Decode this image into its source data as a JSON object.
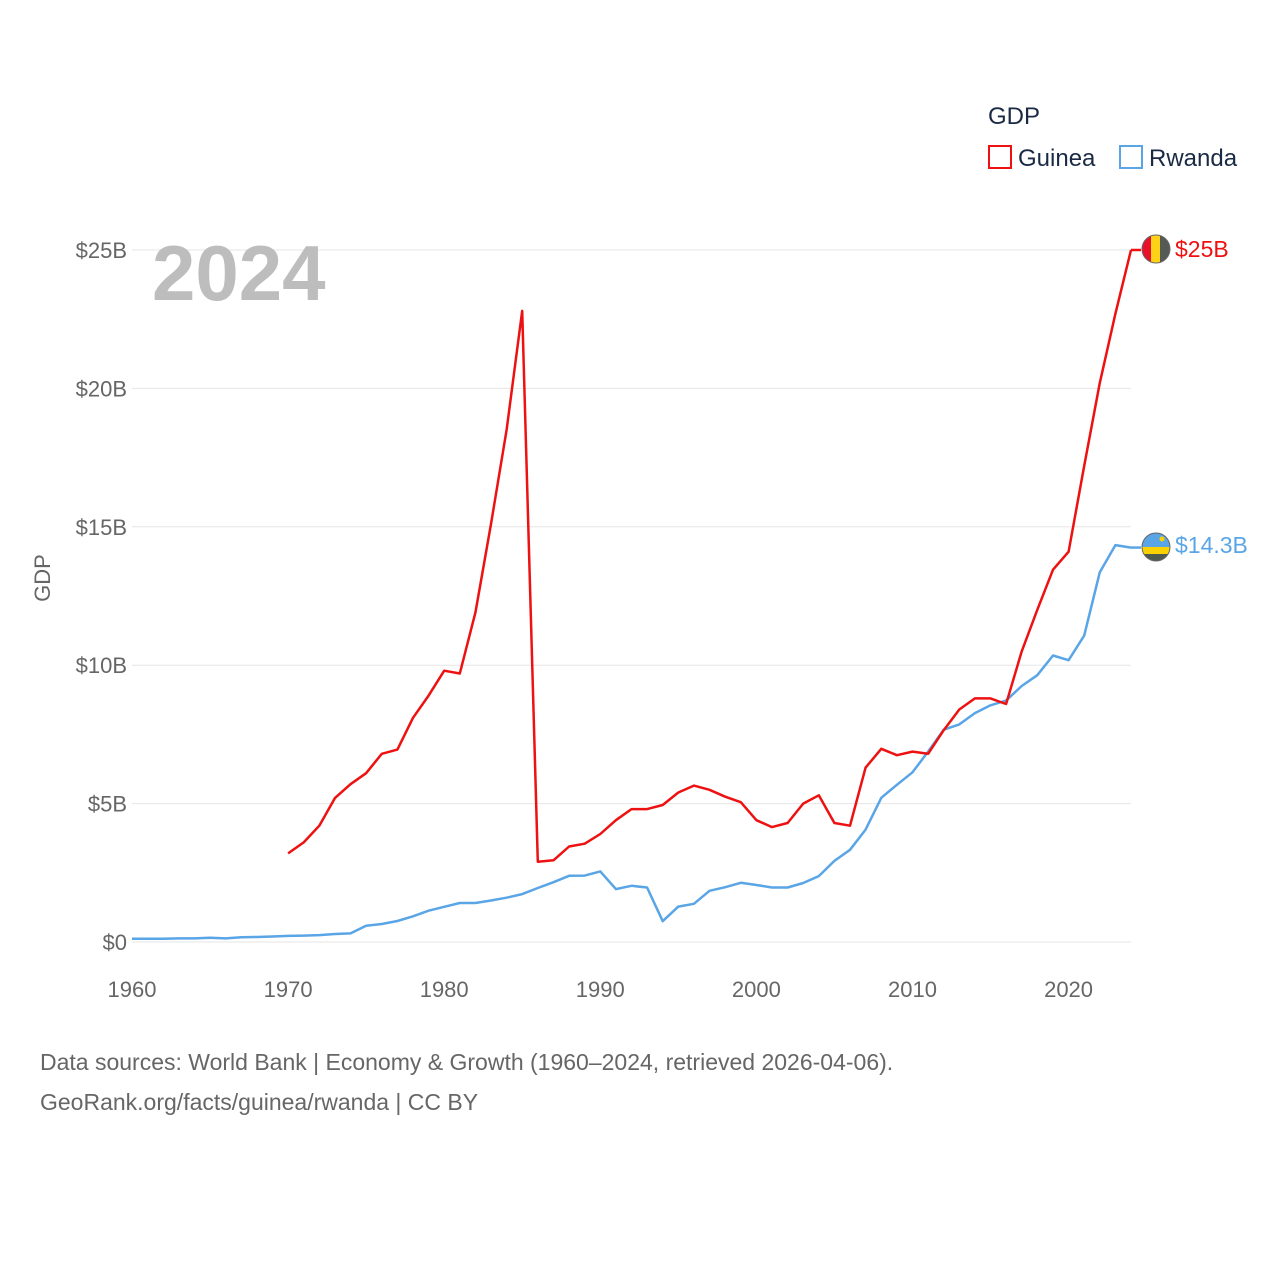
{
  "chart_data": {
    "type": "line",
    "year_label": "2024",
    "ylabel": "GDP",
    "xlim": [
      1960,
      2024
    ],
    "ylim": [
      0,
      25
    ],
    "y_ticks": [
      {
        "value": 0,
        "label": "$0"
      },
      {
        "value": 5,
        "label": "$5B"
      },
      {
        "value": 10,
        "label": "$10B"
      },
      {
        "value": 15,
        "label": "$15B"
      },
      {
        "value": 20,
        "label": "$20B"
      },
      {
        "value": 25,
        "label": "$25B"
      }
    ],
    "x_ticks": [
      {
        "value": 1960,
        "label": "1960"
      },
      {
        "value": 1970,
        "label": "1970"
      },
      {
        "value": 1980,
        "label": "1980"
      },
      {
        "value": 1990,
        "label": "1990"
      },
      {
        "value": 2000,
        "label": "2000"
      },
      {
        "value": 2010,
        "label": "2010"
      },
      {
        "value": 2020,
        "label": "2020"
      }
    ],
    "legend": {
      "title": "GDP",
      "position": "top-right"
    },
    "series": [
      {
        "name": "Guinea",
        "color": "#ee1111",
        "end_label": "$25B",
        "flag": "guinea-flag",
        "x": [
          1970,
          1971,
          1972,
          1973,
          1974,
          1975,
          1976,
          1977,
          1978,
          1979,
          1980,
          1981,
          1982,
          1983,
          1984,
          1985,
          1986,
          1987,
          1988,
          1989,
          1990,
          1991,
          1992,
          1993,
          1994,
          1995,
          1996,
          1997,
          1998,
          1999,
          2000,
          2001,
          2002,
          2003,
          2004,
          2005,
          2006,
          2007,
          2008,
          2009,
          2010,
          2011,
          2012,
          2013,
          2014,
          2015,
          2016,
          2017,
          2018,
          2019,
          2020,
          2021,
          2022,
          2023,
          2024
        ],
        "values": [
          3.2,
          3.6,
          4.2,
          5.2,
          5.7,
          6.1,
          6.8,
          6.95,
          8.1,
          8.9,
          9.8,
          9.7,
          11.9,
          15.1,
          18.5,
          22.8,
          2.9,
          2.95,
          3.45,
          3.55,
          3.9,
          4.4,
          4.8,
          4.8,
          4.95,
          5.4,
          5.65,
          5.5,
          5.25,
          5.05,
          4.4,
          4.15,
          4.3,
          5.0,
          5.3,
          4.3,
          4.2,
          6.3,
          6.98,
          6.75,
          6.88,
          6.8,
          7.65,
          8.4,
          8.8,
          8.8,
          8.6,
          10.5,
          12.0,
          13.45,
          14.1,
          17.2,
          20.2,
          22.7,
          25.0
        ]
      },
      {
        "name": "Rwanda",
        "color": "#5aa5e6",
        "end_label": "$14.3B",
        "flag": "rwanda-flag",
        "x": [
          1960,
          1961,
          1962,
          1963,
          1964,
          1965,
          1966,
          1967,
          1968,
          1969,
          1970,
          1971,
          1972,
          1973,
          1974,
          1975,
          1976,
          1977,
          1978,
          1979,
          1980,
          1981,
          1982,
          1983,
          1984,
          1985,
          1986,
          1987,
          1988,
          1989,
          1990,
          1991,
          1992,
          1993,
          1994,
          1995,
          1996,
          1997,
          1998,
          1999,
          2000,
          2001,
          2002,
          2003,
          2004,
          2005,
          2006,
          2007,
          2008,
          2009,
          2010,
          2011,
          2012,
          2013,
          2014,
          2015,
          2016,
          2017,
          2018,
          2019,
          2020,
          2021,
          2022,
          2023,
          2024
        ],
        "values": [
          0.12,
          0.12,
          0.12,
          0.13,
          0.13,
          0.15,
          0.13,
          0.17,
          0.18,
          0.2,
          0.22,
          0.23,
          0.25,
          0.29,
          0.31,
          0.59,
          0.65,
          0.76,
          0.93,
          1.13,
          1.27,
          1.41,
          1.41,
          1.5,
          1.6,
          1.73,
          1.95,
          2.16,
          2.39,
          2.4,
          2.55,
          1.91,
          2.03,
          1.97,
          0.75,
          1.28,
          1.38,
          1.85,
          1.98,
          2.14,
          2.06,
          1.97,
          1.97,
          2.13,
          2.38,
          2.93,
          3.33,
          4.06,
          5.21,
          5.68,
          6.13,
          6.88,
          7.67,
          7.86,
          8.27,
          8.55,
          8.72,
          9.25,
          9.64,
          10.35,
          10.18,
          11.07,
          13.36,
          14.34,
          14.25
        ]
      }
    ]
  },
  "source": {
    "line1": "Data sources: World Bank | Economy & Growth (1960–2024, retrieved 2026-04-06).",
    "line2": "GeoRank.org/facts/guinea/rwanda | CC BY"
  }
}
